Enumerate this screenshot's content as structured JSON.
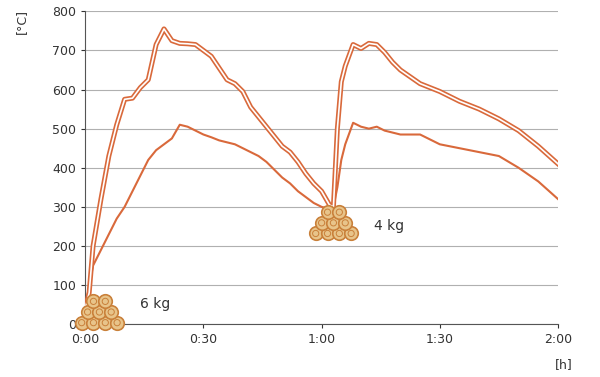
{
  "chart_data": {
    "type": "line",
    "y_label": "[°C]",
    "x_label": "[h]",
    "x": [
      0,
      1,
      2,
      4,
      6,
      8,
      10,
      12,
      14,
      16,
      18,
      20,
      22,
      24,
      26,
      28,
      30,
      32,
      34,
      36,
      38,
      40,
      42,
      44,
      46,
      48,
      50,
      52,
      54,
      56,
      58,
      60,
      62,
      63,
      64,
      65,
      66,
      68,
      70,
      72,
      74,
      76,
      78,
      80,
      85,
      90,
      95,
      100,
      105,
      110,
      115,
      120
    ],
    "series": [
      {
        "color": "#d9693b",
        "line_style": "double",
        "values": [
          40,
          80,
          200,
          320,
          430,
          510,
          575,
          578,
          605,
          625,
          715,
          755,
          725,
          718,
          717,
          715,
          700,
          685,
          655,
          625,
          615,
          595,
          555,
          530,
          505,
          480,
          455,
          440,
          415,
          385,
          360,
          340,
          305,
          300,
          500,
          620,
          660,
          715,
          705,
          718,
          715,
          695,
          670,
          650,
          615,
          595,
          570,
          550,
          525,
          495,
          455,
          410
        ]
      },
      {
        "color": "#d9693b",
        "line_style": "solid",
        "values": [
          40,
          100,
          150,
          190,
          230,
          270,
          300,
          340,
          380,
          420,
          445,
          460,
          475,
          510,
          505,
          495,
          485,
          478,
          470,
          465,
          460,
          450,
          440,
          430,
          415,
          395,
          375,
          360,
          340,
          325,
          310,
          300,
          295,
          300,
          350,
          420,
          460,
          515,
          505,
          500,
          505,
          495,
          490,
          485,
          485,
          460,
          450,
          440,
          430,
          400,
          365,
          320
        ]
      }
    ],
    "xlim": [
      0,
      120
    ],
    "xticks": [
      {
        "value": 0,
        "label": "0:00"
      },
      {
        "value": 30,
        "label": "0:30"
      },
      {
        "value": 60,
        "label": "1:00"
      },
      {
        "value": 90,
        "label": "1:30"
      },
      {
        "value": 120,
        "label": "2:00"
      }
    ],
    "ylim": [
      0,
      800
    ],
    "yticks": [
      0,
      100,
      200,
      300,
      400,
      500,
      600,
      700,
      800
    ],
    "grid": true,
    "annotations": [
      {
        "text": "6 kg"
      },
      {
        "text": "4 kg"
      }
    ]
  }
}
